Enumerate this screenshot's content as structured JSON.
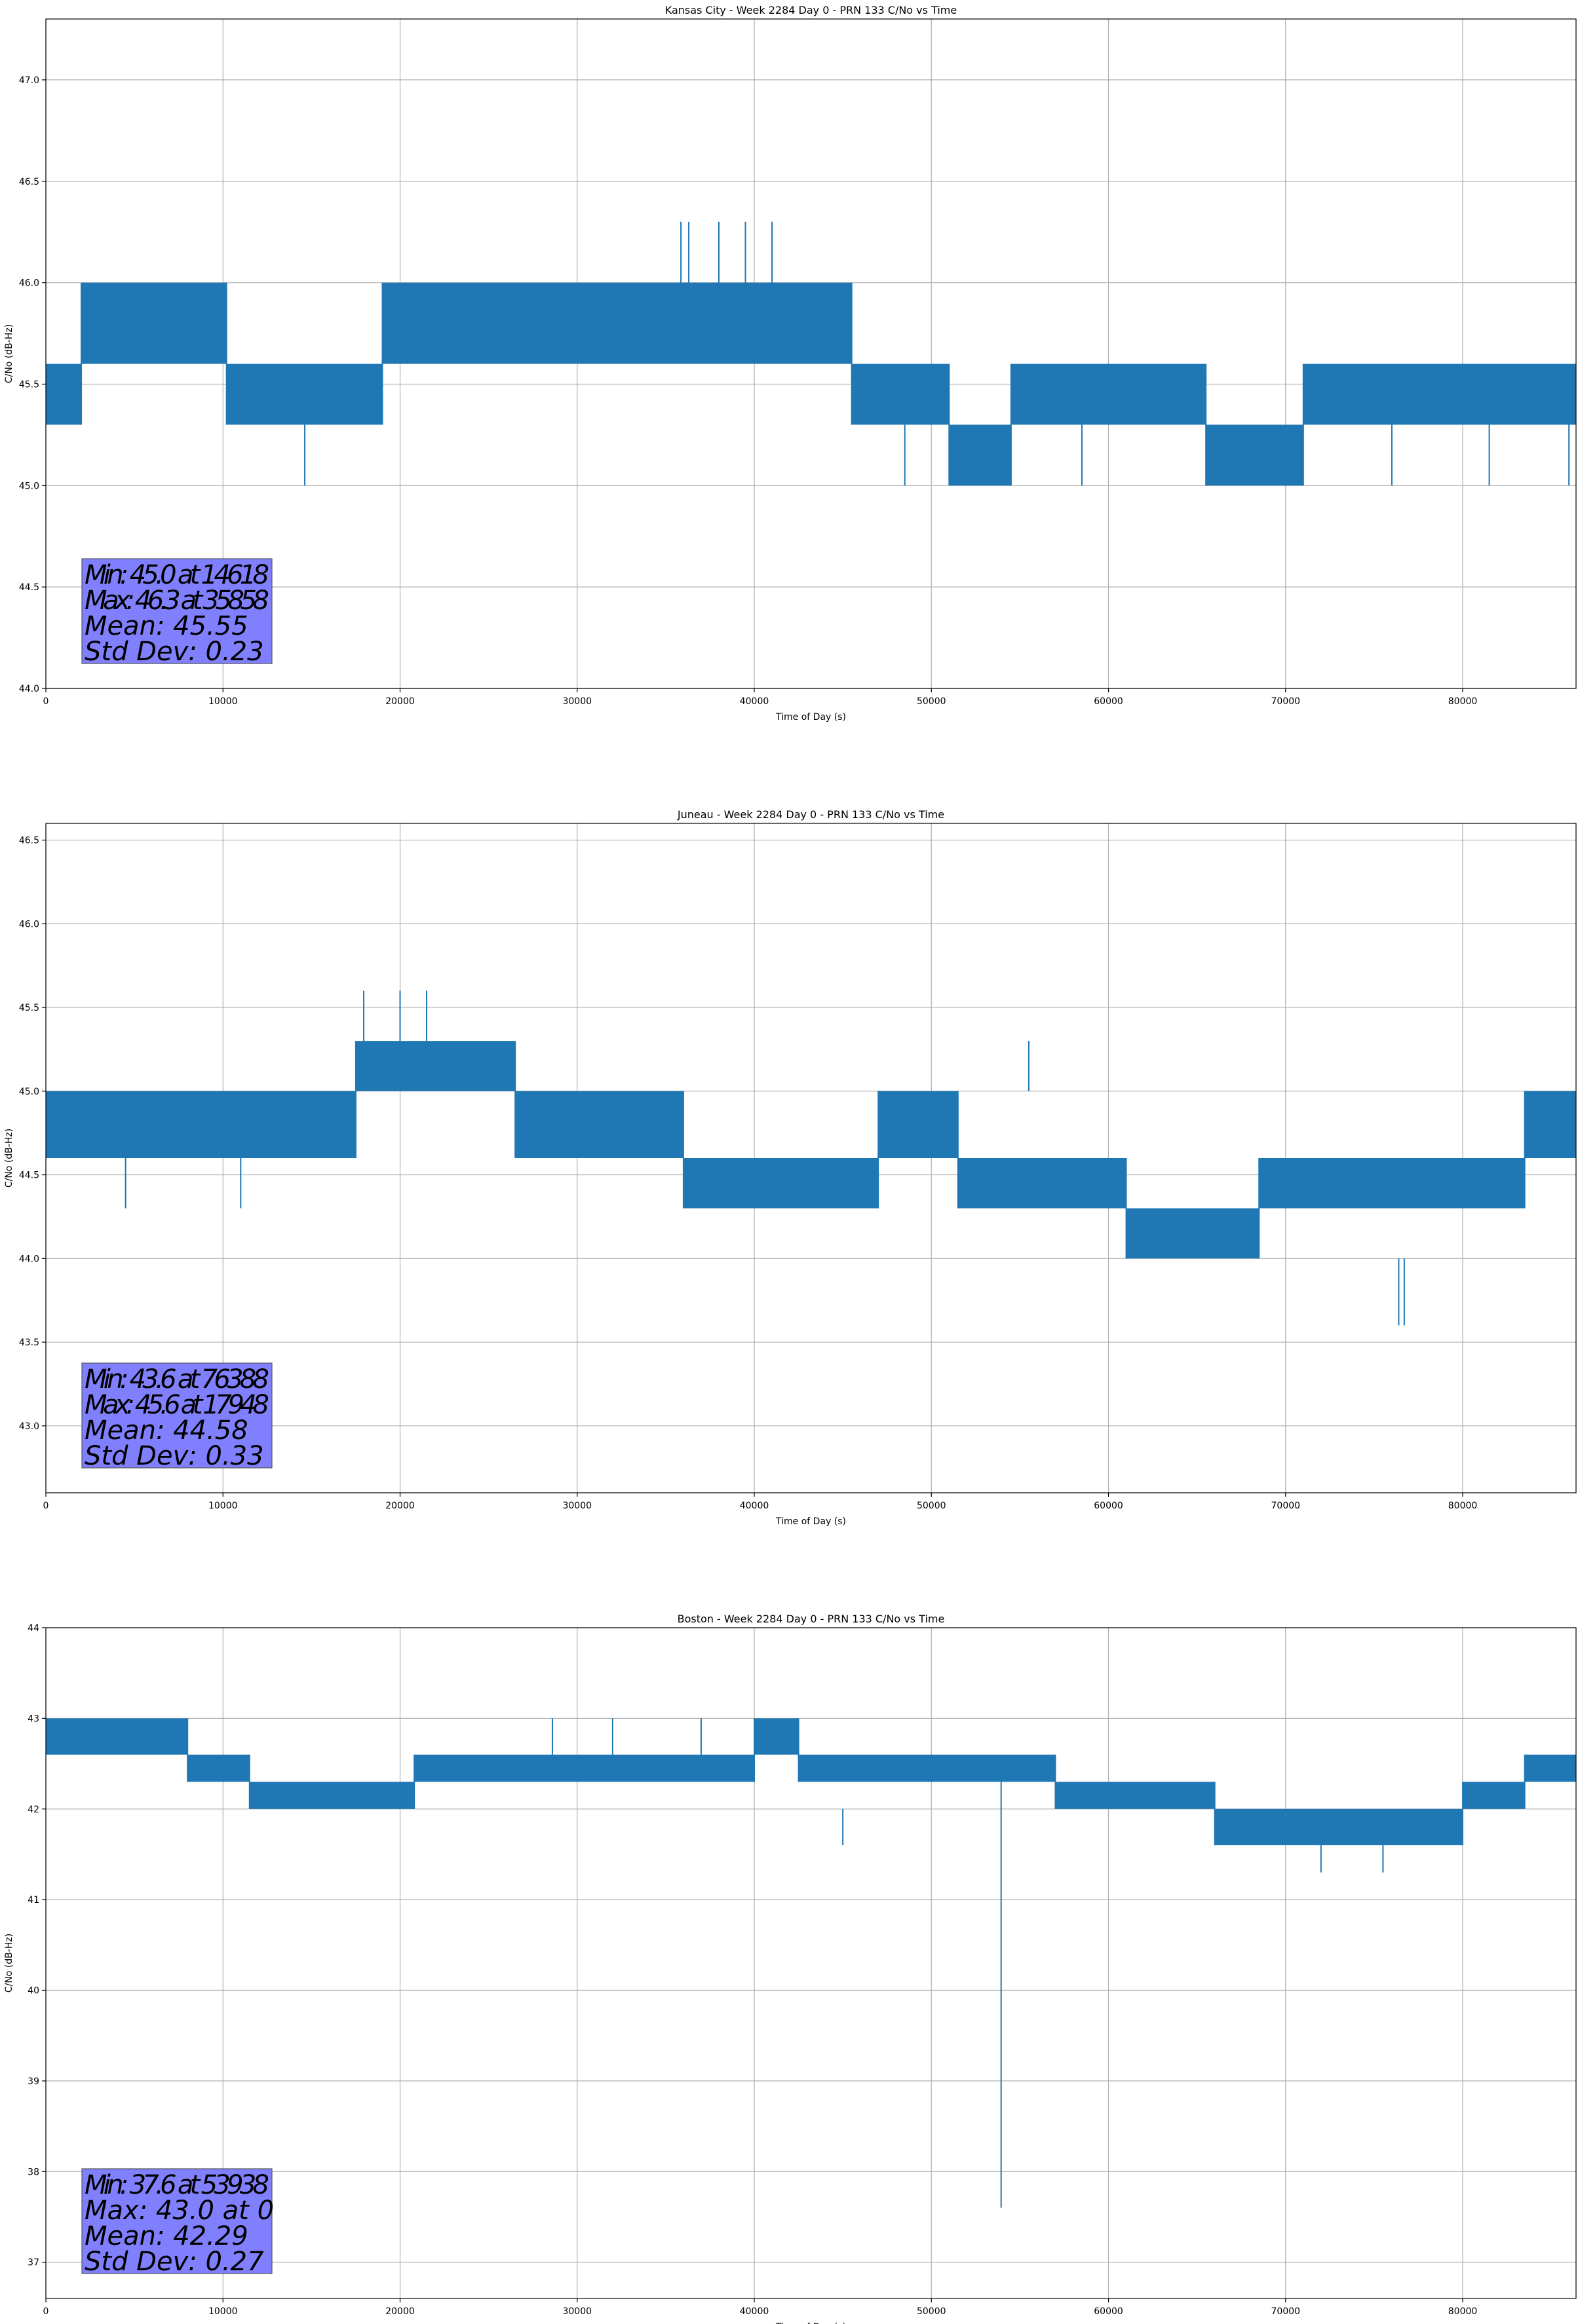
{
  "chart_data": [
    {
      "type": "line",
      "title": "Kansas City - Week 2284 Day 0 - PRN 133 C/No vs Time",
      "xlabel": "Time of Day (s)",
      "ylabel": "C/No (dB-Hz)",
      "xlim": [
        0,
        86400
      ],
      "ylim": [
        44.0,
        47.3
      ],
      "xticks": [
        0,
        10000,
        20000,
        30000,
        40000,
        50000,
        60000,
        70000,
        80000
      ],
      "xtick_labels": [
        "0",
        "10000",
        "20000",
        "30000",
        "40000",
        "50000",
        "60000",
        "70000",
        "80000"
      ],
      "yticks": [
        44.0,
        44.5,
        45.0,
        45.5,
        46.0,
        46.5,
        47.0
      ],
      "ytick_labels": [
        "44.0",
        "44.5",
        "45.0",
        "45.5",
        "46.0",
        "46.5",
        "47.0"
      ],
      "grid": true,
      "series": [
        {
          "name": "C/No",
          "color": "#1f77b4"
        }
      ],
      "bands": [
        {
          "x": [
            0,
            2000
          ],
          "y": [
            45.3,
            45.6
          ]
        },
        {
          "x": [
            2000,
            10200
          ],
          "y": [
            45.6,
            46.0
          ]
        },
        {
          "x": [
            10200,
            19000
          ],
          "y": [
            45.3,
            45.6
          ]
        },
        {
          "x": [
            19000,
            45500
          ],
          "y": [
            45.6,
            46.0
          ]
        },
        {
          "x": [
            45500,
            51000
          ],
          "y": [
            45.3,
            45.6
          ]
        },
        {
          "x": [
            51000,
            54500
          ],
          "y": [
            45.0,
            45.3
          ]
        },
        {
          "x": [
            54500,
            65500
          ],
          "y": [
            45.3,
            45.6
          ]
        },
        {
          "x": [
            65500,
            71000
          ],
          "y": [
            45.0,
            45.3
          ]
        },
        {
          "x": [
            71000,
            86400
          ],
          "y": [
            45.3,
            45.6
          ]
        }
      ],
      "spikes": [
        {
          "x": 14618,
          "y": [
            45.0,
            45.3
          ]
        },
        {
          "x": 35858,
          "y": [
            46.0,
            46.3
          ]
        },
        {
          "x": 36300,
          "y": [
            46.0,
            46.3
          ]
        },
        {
          "x": 38000,
          "y": [
            46.0,
            46.3
          ]
        },
        {
          "x": 39500,
          "y": [
            46.0,
            46.3
          ]
        },
        {
          "x": 41000,
          "y": [
            46.0,
            46.3
          ]
        },
        {
          "x": 48500,
          "y": [
            45.0,
            45.3
          ]
        },
        {
          "x": 58500,
          "y": [
            45.0,
            45.3
          ]
        },
        {
          "x": 76000,
          "y": [
            45.0,
            45.3
          ]
        },
        {
          "x": 81500,
          "y": [
            45.0,
            45.3
          ]
        },
        {
          "x": 86000,
          "y": [
            45.0,
            45.3
          ]
        }
      ],
      "stats": {
        "min": "Min: 45.0 at 14618",
        "max": "Max: 46.3 at 35858",
        "mean": "Mean: 45.55",
        "std": "Std Dev: 0.23"
      }
    },
    {
      "type": "line",
      "title": "Juneau - Week 2284 Day 0 - PRN 133 C/No vs Time",
      "xlabel": "Time of Day (s)",
      "ylabel": "C/No (dB-Hz)",
      "xlim": [
        0,
        86400
      ],
      "ylim": [
        42.6,
        46.6
      ],
      "xticks": [
        0,
        10000,
        20000,
        30000,
        40000,
        50000,
        60000,
        70000,
        80000
      ],
      "xtick_labels": [
        "0",
        "10000",
        "20000",
        "30000",
        "40000",
        "50000",
        "60000",
        "70000",
        "80000"
      ],
      "yticks": [
        43.0,
        43.5,
        44.0,
        44.5,
        45.0,
        45.5,
        46.0,
        46.5
      ],
      "ytick_labels": [
        "43.0",
        "43.5",
        "44.0",
        "44.5",
        "45.0",
        "45.5",
        "46.0",
        "46.5"
      ],
      "grid": true,
      "series": [
        {
          "name": "C/No",
          "color": "#1f77b4"
        }
      ],
      "bands": [
        {
          "x": [
            0,
            17500
          ],
          "y": [
            44.6,
            45.0
          ]
        },
        {
          "x": [
            17500,
            26500
          ],
          "y": [
            45.0,
            45.3
          ]
        },
        {
          "x": [
            26500,
            36000
          ],
          "y": [
            44.6,
            45.0
          ]
        },
        {
          "x": [
            36000,
            47000
          ],
          "y": [
            44.3,
            44.6
          ]
        },
        {
          "x": [
            47000,
            51500
          ],
          "y": [
            44.6,
            45.0
          ]
        },
        {
          "x": [
            51500,
            61000
          ],
          "y": [
            44.3,
            44.6
          ]
        },
        {
          "x": [
            61000,
            68500
          ],
          "y": [
            44.0,
            44.3
          ]
        },
        {
          "x": [
            68500,
            83500
          ],
          "y": [
            44.3,
            44.6
          ]
        },
        {
          "x": [
            83500,
            86400
          ],
          "y": [
            44.6,
            45.0
          ]
        }
      ],
      "spikes": [
        {
          "x": 17948,
          "y": [
            45.3,
            45.6
          ]
        },
        {
          "x": 20000,
          "y": [
            45.3,
            45.6
          ]
        },
        {
          "x": 21500,
          "y": [
            45.3,
            45.6
          ]
        },
        {
          "x": 4500,
          "y": [
            44.3,
            44.6
          ]
        },
        {
          "x": 11000,
          "y": [
            44.3,
            44.6
          ]
        },
        {
          "x": 55500,
          "y": [
            45.0,
            45.3
          ]
        },
        {
          "x": 76388,
          "y": [
            43.6,
            44.0
          ]
        },
        {
          "x": 76700,
          "y": [
            43.6,
            44.0
          ]
        }
      ],
      "stats": {
        "min": "Min: 43.6 at 76388",
        "max": "Max: 45.6 at 17948",
        "mean": "Mean: 44.58",
        "std": "Std Dev: 0.33"
      }
    },
    {
      "type": "line",
      "title": "Boston - Week 2284 Day 0 - PRN 133 C/No vs Time",
      "xlabel": "Time of Day (s)",
      "ylabel": "C/No (dB-Hz)",
      "xlim": [
        0,
        86400
      ],
      "ylim": [
        36.6,
        44.0
      ],
      "xticks": [
        0,
        10000,
        20000,
        30000,
        40000,
        50000,
        60000,
        70000,
        80000
      ],
      "xtick_labels": [
        "0",
        "10000",
        "20000",
        "30000",
        "40000",
        "50000",
        "60000",
        "70000",
        "80000"
      ],
      "yticks": [
        37,
        38,
        39,
        40,
        41,
        42,
        43,
        44
      ],
      "ytick_labels": [
        "37",
        "38",
        "39",
        "40",
        "41",
        "42",
        "43",
        "44"
      ],
      "grid": true,
      "series": [
        {
          "name": "C/No",
          "color": "#1f77b4"
        }
      ],
      "bands": [
        {
          "x": [
            0,
            8000
          ],
          "y": [
            42.6,
            43.0
          ]
        },
        {
          "x": [
            8000,
            11500
          ],
          "y": [
            42.3,
            42.6
          ]
        },
        {
          "x": [
            11500,
            20800
          ],
          "y": [
            42.0,
            42.3
          ]
        },
        {
          "x": [
            20800,
            40000
          ],
          "y": [
            42.3,
            42.6
          ]
        },
        {
          "x": [
            40000,
            42500
          ],
          "y": [
            42.6,
            43.0
          ]
        },
        {
          "x": [
            42500,
            57000
          ],
          "y": [
            42.3,
            42.6
          ]
        },
        {
          "x": [
            57000,
            66000
          ],
          "y": [
            42.0,
            42.3
          ]
        },
        {
          "x": [
            66000,
            80000
          ],
          "y": [
            41.6,
            42.0
          ]
        },
        {
          "x": [
            80000,
            83500
          ],
          "y": [
            42.0,
            42.3
          ]
        },
        {
          "x": [
            83500,
            86400
          ],
          "y": [
            42.3,
            42.6
          ]
        }
      ],
      "spikes": [
        {
          "x": 53938,
          "y": [
            37.6,
            42.3
          ]
        },
        {
          "x": 28600,
          "y": [
            42.6,
            43.0
          ]
        },
        {
          "x": 32000,
          "y": [
            42.6,
            43.0
          ]
        },
        {
          "x": 37000,
          "y": [
            42.6,
            43.0
          ]
        },
        {
          "x": 45000,
          "y": [
            41.6,
            42.0
          ]
        },
        {
          "x": 72000,
          "y": [
            41.3,
            41.6
          ]
        },
        {
          "x": 75500,
          "y": [
            41.3,
            41.6
          ]
        }
      ],
      "stats": {
        "min": "Min: 37.6 at 53938",
        "max": "Max: 43.0 at 0",
        "mean": "Mean: 42.29",
        "std": "Std Dev: 0.27"
      }
    }
  ]
}
